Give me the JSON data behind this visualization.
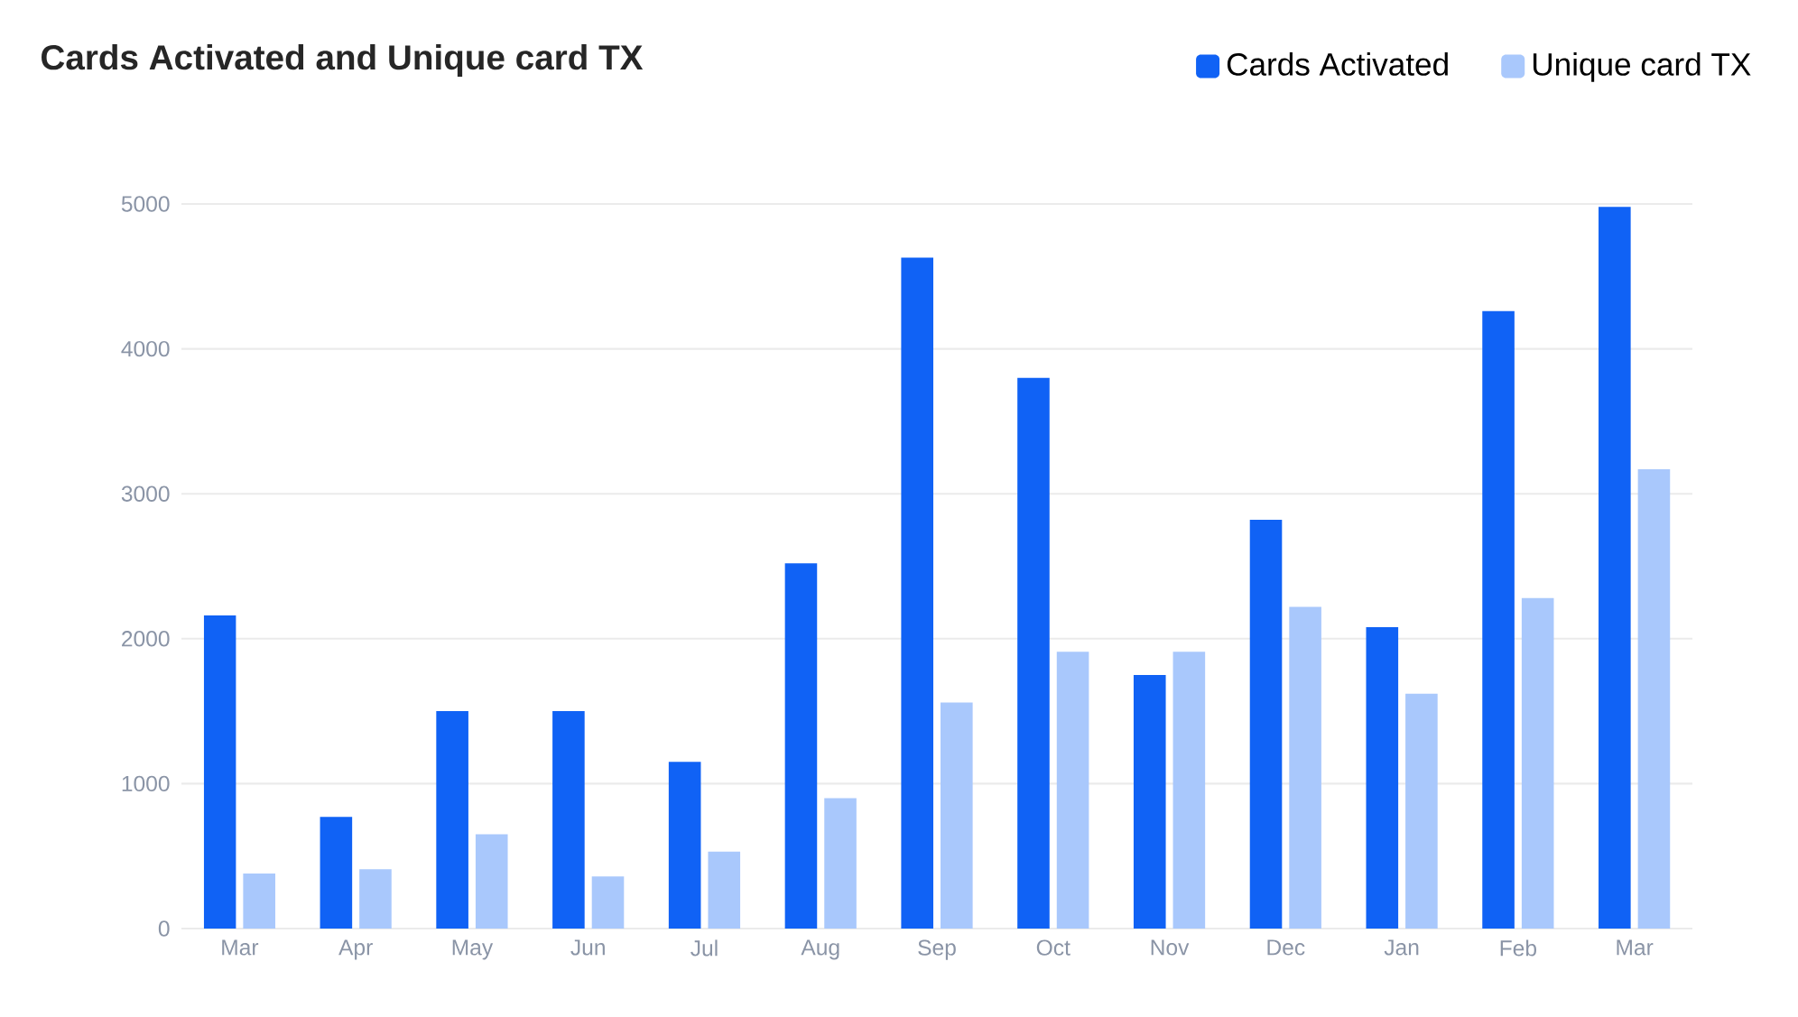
{
  "chart_data": {
    "type": "bar",
    "title": "Cards Activated and Unique card TX",
    "categories": [
      "Mar",
      "Apr",
      "May",
      "Jun",
      "Jul",
      "Aug",
      "Sep",
      "Oct",
      "Nov",
      "Dec",
      "Jan",
      "Feb",
      "Mar"
    ],
    "series": [
      {
        "name": "Cards Activated",
        "color": "#1062f5",
        "values": [
          2160,
          770,
          1500,
          1500,
          1150,
          2520,
          4630,
          3800,
          1750,
          2820,
          2080,
          4260,
          4980
        ]
      },
      {
        "name": "Unique card TX",
        "color": "#a9c8fc",
        "values": [
          380,
          410,
          650,
          360,
          530,
          900,
          1560,
          1910,
          1910,
          2220,
          1620,
          2280,
          3170
        ]
      }
    ],
    "ylim": [
      0,
      5000
    ],
    "yticks": [
      0,
      1000,
      2000,
      3000,
      4000,
      5000
    ],
    "grid": "y",
    "legend": "top right"
  }
}
